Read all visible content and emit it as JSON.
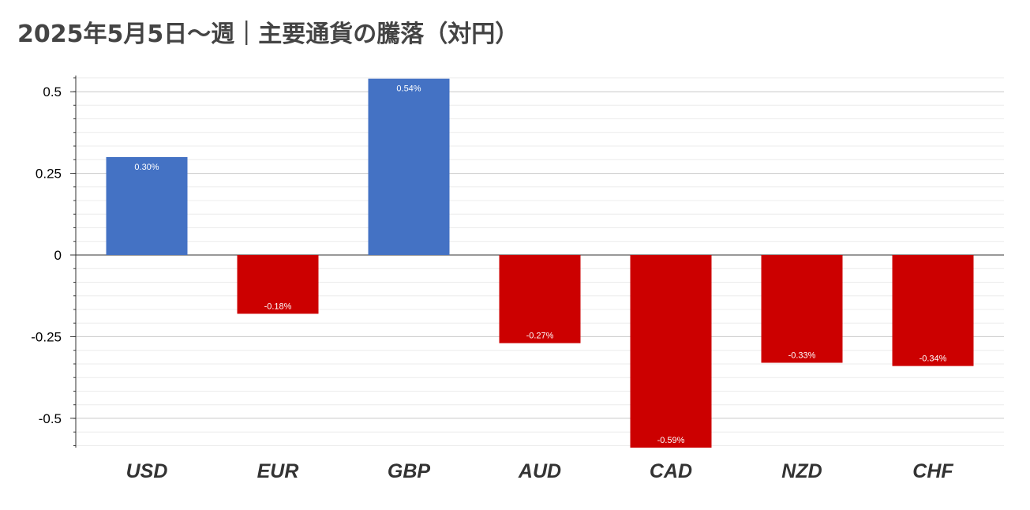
{
  "chart_data": {
    "type": "bar",
    "title": "2025年5月5日〜週｜主要通貨の騰落（対円）",
    "categories": [
      "USD",
      "EUR",
      "GBP",
      "AUD",
      "CAD",
      "NZD",
      "CHF"
    ],
    "values": [
      0.3,
      -0.18,
      0.54,
      -0.27,
      -0.59,
      -0.33,
      -0.34
    ],
    "data_labels": [
      "0.30%",
      "-0.18%",
      "0.54%",
      "-0.27%",
      "-0.59%",
      "-0.33%",
      "-0.34%"
    ],
    "ylim": [
      -0.59,
      0.54
    ],
    "yticks": [
      0.5,
      0.25,
      0,
      -0.25,
      -0.5
    ],
    "ytick_labels": [
      "0.5",
      "0.25",
      "0",
      "-0.25",
      "-0.5"
    ],
    "minor_grid_step": 0.0417,
    "xlabel": "",
    "ylabel": "",
    "grid": true,
    "legend": "none",
    "colors": {
      "positive": "#4472c4",
      "negative": "#cc0000",
      "grid": "#dddddd",
      "axis": "#333333"
    }
  }
}
